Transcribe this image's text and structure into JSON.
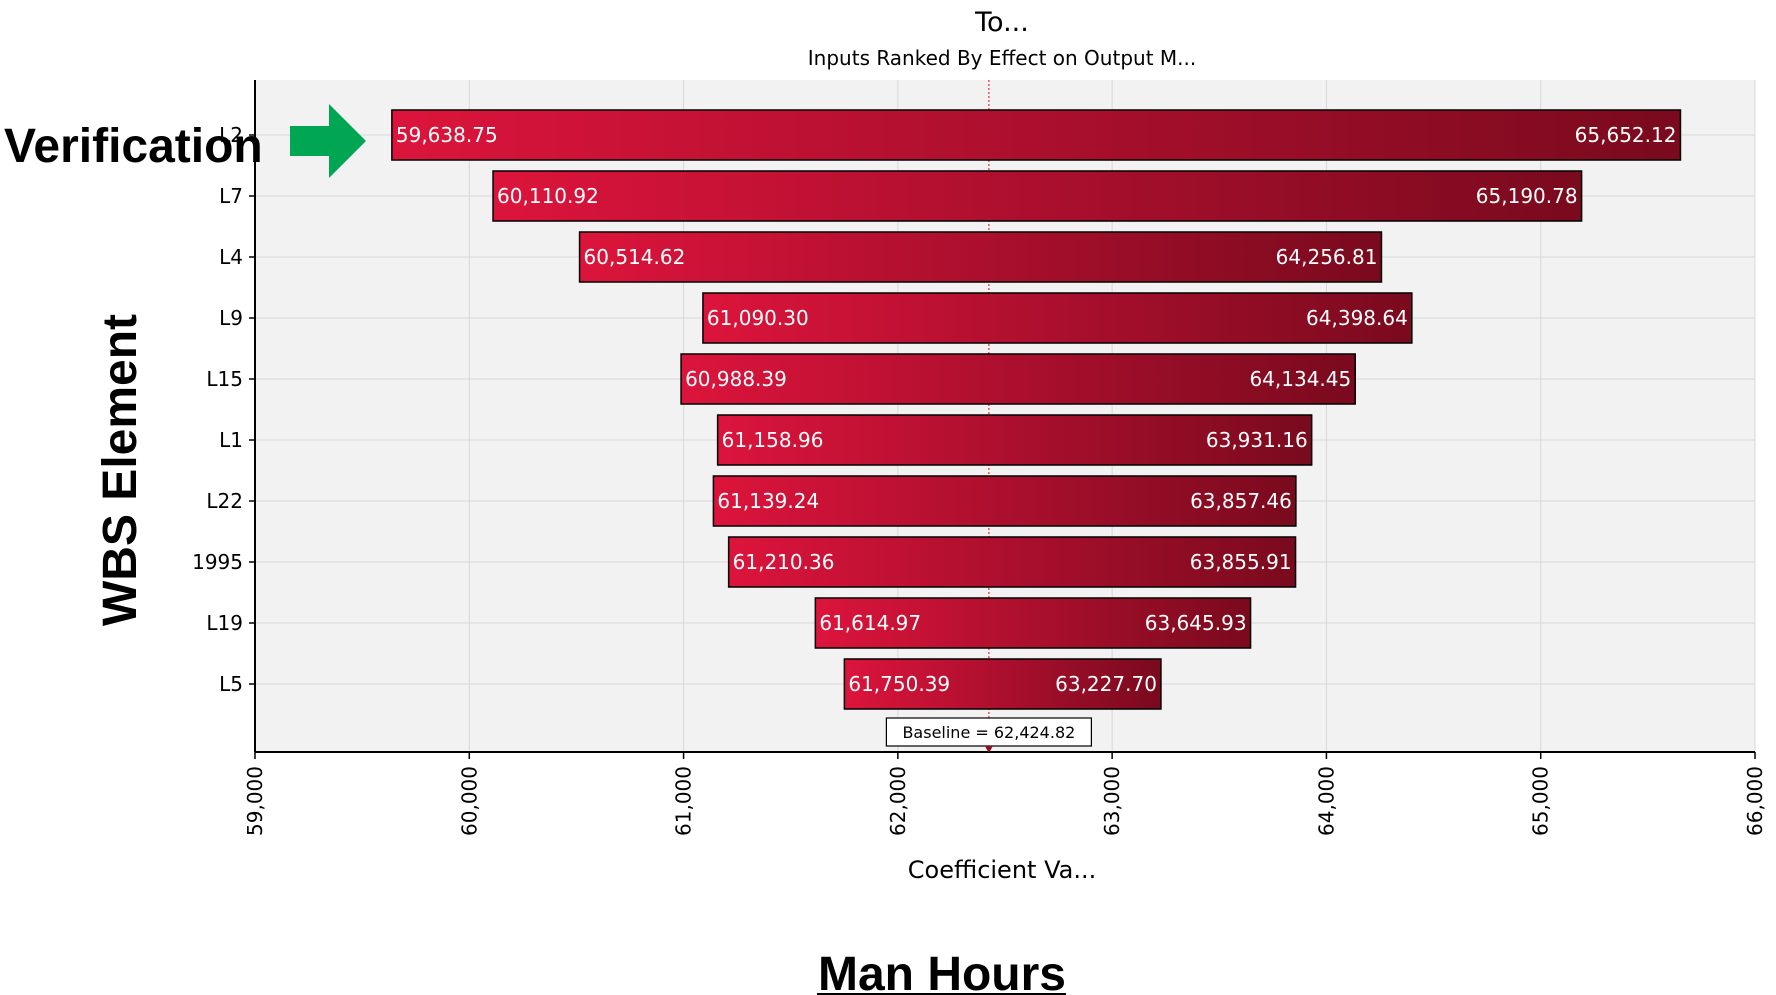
{
  "chart_data": {
    "type": "bar",
    "orientation": "horizontal",
    "variant": "tornado",
    "title": "To...",
    "subtitle": "Inputs Ranked By Effect on Output M...",
    "xlabel": "Coefficient Va...",
    "ylabel": "WBS Element",
    "xlim": [
      59000,
      66000
    ],
    "xticks": [
      59000,
      60000,
      61000,
      62000,
      63000,
      64000,
      65000,
      66000
    ],
    "xtick_labels": [
      "59,000",
      "60,000",
      "61,000",
      "62,000",
      "63,000",
      "64,000",
      "65,000",
      "66,000"
    ],
    "grid": true,
    "baseline": 62424.82,
    "baseline_label": "Baseline = 62,424.82",
    "bar_color_light": "#dc143c",
    "bar_color_dark": "#7a0a1e",
    "bars": [
      {
        "category": "L2",
        "low": 59638.75,
        "high": 65652.12,
        "low_label": "59,638.75",
        "high_label": "65,652.12"
      },
      {
        "category": "L7",
        "low": 60110.92,
        "high": 65190.78,
        "low_label": "60,110.92",
        "high_label": "65,190.78"
      },
      {
        "category": "L4",
        "low": 60514.62,
        "high": 64256.81,
        "low_label": "60,514.62",
        "high_label": "64,256.81"
      },
      {
        "category": "L9",
        "low": 61090.3,
        "high": 64398.64,
        "low_label": "61,090.30",
        "high_label": "64,398.64"
      },
      {
        "category": "L15",
        "low": 60988.39,
        "high": 64134.45,
        "low_label": "60,988.39",
        "high_label": "64,134.45"
      },
      {
        "category": "L1",
        "low": 61158.96,
        "high": 63931.16,
        "low_label": "61,158.96",
        "high_label": "63,931.16"
      },
      {
        "category": "L22",
        "low": 61139.24,
        "high": 63857.46,
        "low_label": "61,139.24",
        "high_label": "63,857.46"
      },
      {
        "category": "1995",
        "low": 61210.36,
        "high": 63855.91,
        "low_label": "61,210.36",
        "high_label": "63,855.91"
      },
      {
        "category": "L19",
        "low": 61614.97,
        "high": 63645.93,
        "low_label": "61,614.97",
        "high_label": "63,645.93"
      },
      {
        "category": "L5",
        "low": 61750.39,
        "high": 63227.7,
        "low_label": "61,750.39",
        "high_label": "63,227.70"
      }
    ]
  },
  "annotations": {
    "highlight_label": "Verification",
    "arrow_icon": "right-arrow-icon",
    "arrow_color": "#00a651",
    "ylabel_big": "WBS Element",
    "footer_label": "Man Hours"
  }
}
